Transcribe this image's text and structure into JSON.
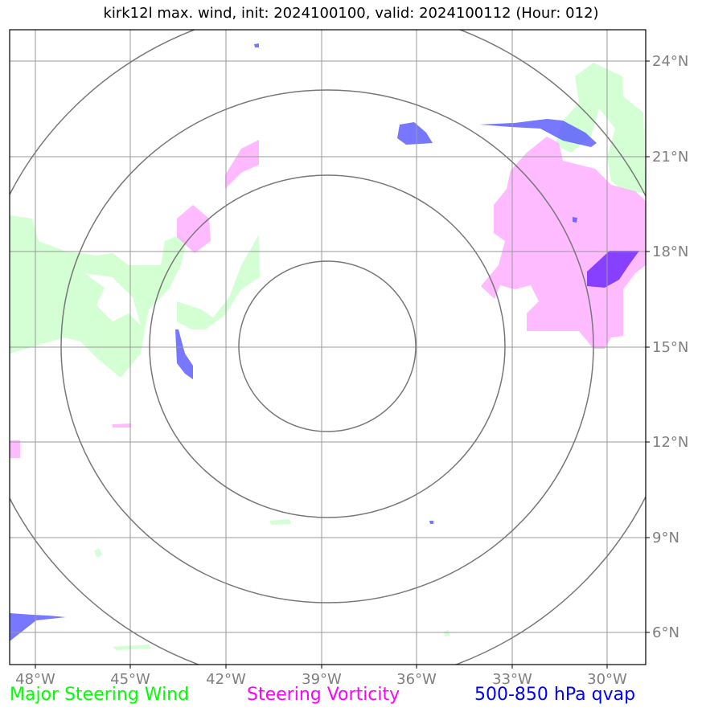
{
  "title": "kirk12l max. wind, init: 2024100100, valid: 2024100112 (Hour: 012)",
  "legend": {
    "wind": "Major Steering Wind",
    "vorticity": "Steering Vorticity",
    "qvap": "500-850 hPa qvap"
  },
  "axes": {
    "longitude_ticks": [
      "48°W",
      "45°W",
      "42°W",
      "39°W",
      "36°W",
      "33°W",
      "30°W"
    ],
    "latitude_ticks": [
      "24°N",
      "21°N",
      "18°N",
      "15°N",
      "12°N",
      "9°N",
      "6°N"
    ],
    "lon_range": [
      -48.8,
      -28.8
    ],
    "lat_range": [
      5.0,
      25.0
    ]
  },
  "map": {
    "center": {
      "lon": -39.0,
      "lat": 15.0
    },
    "range_rings": 4,
    "colors": {
      "wind": "#ccffcc",
      "vorticity": "#ffaaff",
      "qvap": "#5555ff",
      "qvap_dark": "#7a33ff",
      "grid": "#9a9a9a",
      "ring": "#777777"
    }
  }
}
